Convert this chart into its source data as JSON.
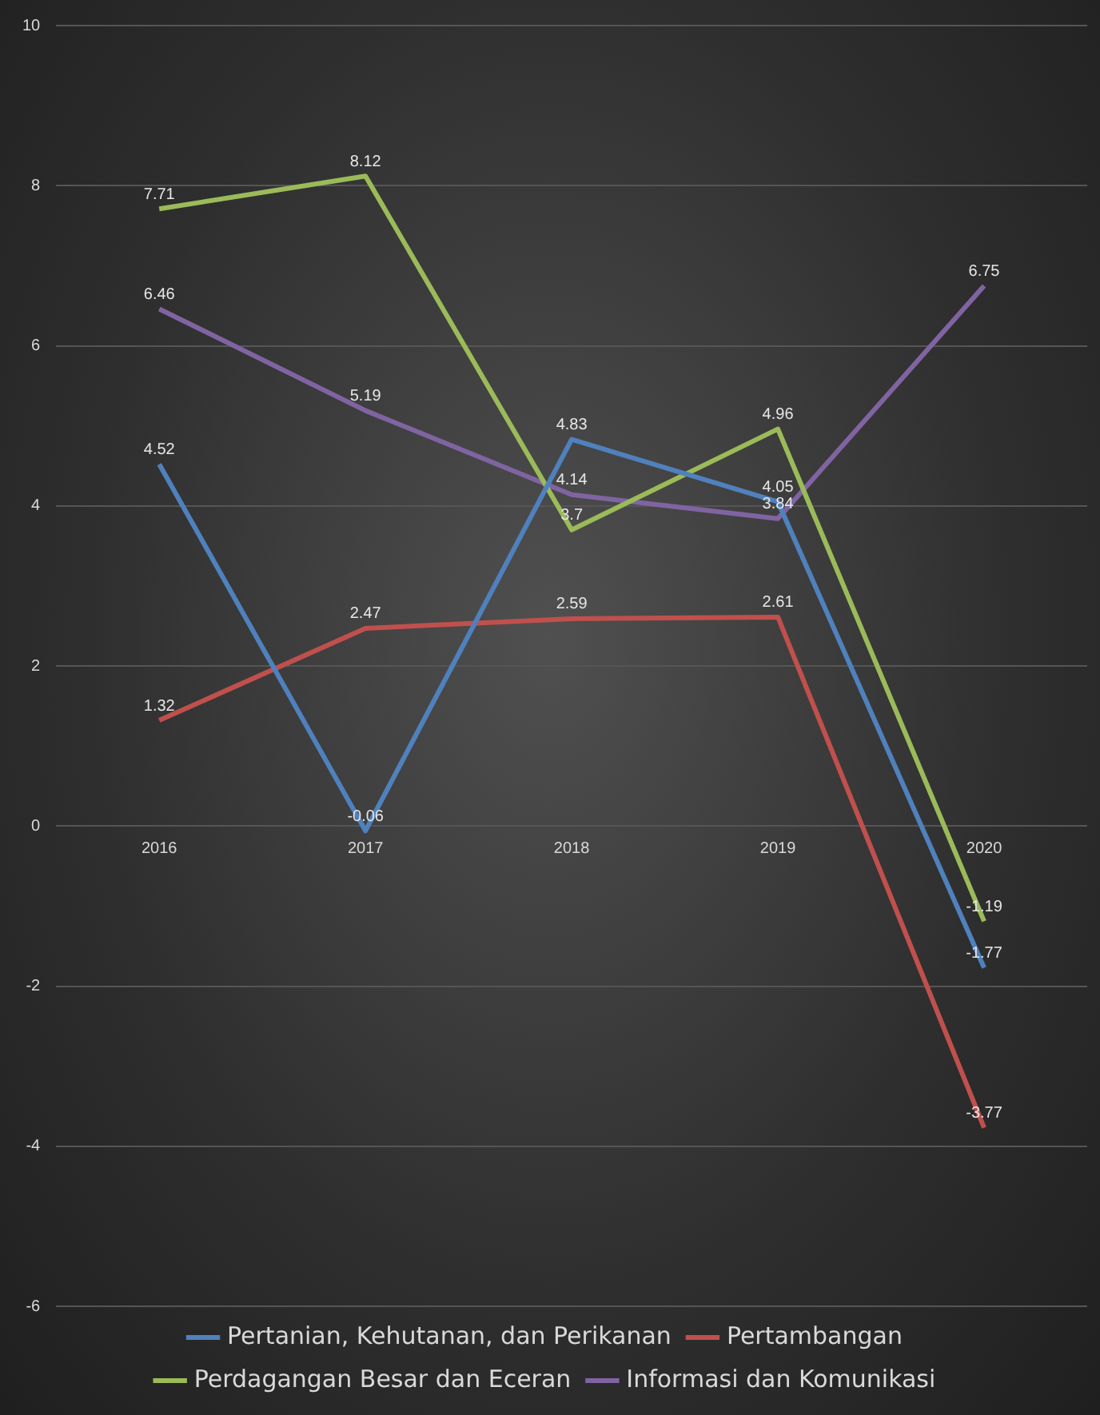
{
  "chart_data": {
    "type": "line",
    "categories": [
      "2016",
      "2017",
      "2018",
      "2019",
      "2020"
    ],
    "series": [
      {
        "name": "Pertanian, Kehutanan, dan Perikanan",
        "color": "#4f81bd",
        "values": [
          4.52,
          -0.06,
          4.83,
          4.05,
          -1.77
        ]
      },
      {
        "name": "Pertambangan",
        "color": "#c0504d",
        "values": [
          1.32,
          2.47,
          2.59,
          2.61,
          -3.77
        ]
      },
      {
        "name": "Perdagangan Besar dan Eceran",
        "color": "#9bbb59",
        "values": [
          7.71,
          8.12,
          3.7,
          4.96,
          -1.19
        ]
      },
      {
        "name": "Informasi dan Komunikasi",
        "color": "#8064a2",
        "values": [
          6.46,
          5.19,
          4.14,
          3.84,
          6.75
        ]
      }
    ],
    "ylim": [
      -6,
      10
    ],
    "yticks": [
      -6,
      -4,
      -2,
      0,
      2,
      4,
      6,
      8,
      10
    ],
    "grid": "y",
    "legend": "bottom",
    "marker": "none",
    "line_style": "solid",
    "data_labels": true
  }
}
